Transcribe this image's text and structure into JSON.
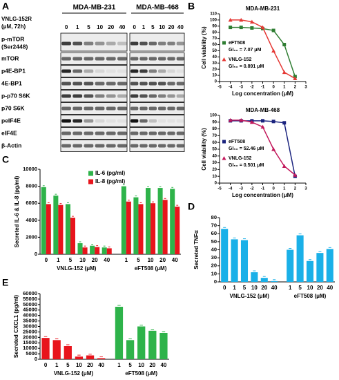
{
  "panels": [
    "A",
    "B",
    "C",
    "D",
    "E"
  ],
  "blot": {
    "cell_lines": [
      "MDA-MB-231",
      "MDA-MB-468"
    ],
    "treatment": [
      "VNLG-152R",
      "(μM, 72h)"
    ],
    "doses": [
      "0",
      "1",
      "5",
      "10",
      "20",
      "40"
    ],
    "rows": [
      [
        "p-mTOR",
        "(Ser2448)"
      ],
      [
        "mTOR"
      ],
      [
        "p4E-BP1"
      ],
      [
        "4E-BP1"
      ],
      [
        "p-p70 S6K"
      ],
      [
        "p70 S6K"
      ],
      [
        "peIF4E"
      ],
      [
        "eIF4E"
      ],
      [
        "β-Actin"
      ]
    ]
  },
  "chart_data": [
    {
      "type": "line",
      "title": "MDA-MB-231",
      "xlabel": "Log concentration (μM)",
      "ylabel": "Cell viability (%)",
      "x": [
        -4,
        -3,
        -2,
        -1,
        0,
        1,
        2
      ],
      "xlim": [
        -5,
        3
      ],
      "xticks": [
        -5,
        -4,
        -3,
        -2,
        -1,
        0,
        1,
        2,
        3
      ],
      "ylim": [
        0,
        110
      ],
      "yticks": [
        0,
        10,
        20,
        30,
        40,
        50,
        60,
        70,
        80,
        90,
        100,
        110
      ],
      "series": [
        {
          "name": "eFT508",
          "color": "#2e7d32",
          "marker": "square",
          "values": [
            88,
            88,
            87,
            86,
            83,
            60,
            8
          ],
          "annotation": "GI₅₀ = 7.07 μM"
        },
        {
          "name": "VNLG-152",
          "color": "#e53935",
          "marker": "triangle",
          "values": [
            100,
            100,
            97,
            88,
            50,
            15,
            5
          ],
          "annotation": "GI₅₀ = 0.891 μM"
        }
      ]
    },
    {
      "type": "line",
      "title": "MDA-MB-468",
      "xlabel": "Log concentration (μM)",
      "ylabel": "Cell viability (%)",
      "x": [
        -4,
        -3,
        -2,
        -1,
        0,
        1,
        2
      ],
      "xlim": [
        -5,
        3
      ],
      "xticks": [
        -5,
        -4,
        -3,
        -2,
        -1,
        0,
        1,
        2,
        3
      ],
      "ylim": [
        0,
        100
      ],
      "yticks": [
        0,
        10,
        20,
        30,
        40,
        50,
        60,
        70,
        80,
        90,
        100
      ],
      "series": [
        {
          "name": "eFT508",
          "color": "#1a237e",
          "marker": "square",
          "values": [
            92,
            92,
            92,
            92,
            91,
            89,
            10
          ],
          "annotation": "GI₅₀ = 52.46 μM"
        },
        {
          "name": "VNLG-152",
          "color": "#c2185b",
          "marker": "triangle",
          "values": [
            93,
            93,
            90,
            83,
            50,
            25,
            12
          ],
          "annotation": "GI₅₀ = 0.501 μM"
        }
      ]
    },
    {
      "type": "bar",
      "ylabel": "Secreted IL-6 & IL-8 (pg/ml)",
      "group_labels": [
        "VNLG-152 (μM)",
        "eFT508 (μM)"
      ],
      "categories": [
        "0",
        "1",
        "5",
        "10",
        "20",
        "40",
        "1",
        "5",
        "10",
        "20",
        "40"
      ],
      "ylim": [
        0,
        10000
      ],
      "yticks": [
        0,
        2000,
        4000,
        6000,
        8000,
        10000
      ],
      "series": [
        {
          "name": "IL-6 (pg/ml)",
          "color": "#2eb34a",
          "values": [
            7900,
            6900,
            5900,
            1300,
            1000,
            800,
            8000,
            6700,
            7800,
            7800,
            7700
          ]
        },
        {
          "name": "IL-8 (pg/ml)",
          "color": "#e8141c",
          "values": [
            5900,
            5800,
            4300,
            800,
            850,
            700,
            6200,
            5900,
            6000,
            6400,
            5600
          ]
        }
      ]
    },
    {
      "type": "bar",
      "ylabel": "Secreted TNFα",
      "group_labels": [
        "VNLG-152 (μM)",
        "eFT508 (μM)"
      ],
      "categories": [
        "0",
        "1",
        "5",
        "10",
        "20",
        "40",
        "1",
        "5",
        "10",
        "20",
        "40"
      ],
      "ylim": [
        0,
        80
      ],
      "yticks": [
        0,
        10,
        20,
        30,
        40,
        50,
        60,
        70,
        80
      ],
      "values": [
        66,
        53,
        52,
        12,
        5,
        1,
        40,
        58,
        26,
        36,
        41
      ],
      "color": "#1ab0e8"
    },
    {
      "type": "bar",
      "ylabel": "Secreted CXCL1 (pg/ml)",
      "group_labels": [
        "VNLG-152 (μM)",
        "eFT508 (μM)"
      ],
      "categories": [
        "0",
        "1",
        "5",
        "10",
        "20",
        "40",
        "1",
        "5",
        "10",
        "20",
        "40"
      ],
      "ylim": [
        0,
        60000
      ],
      "yticks": [
        0,
        5000,
        10000,
        15000,
        20000,
        25000,
        30000,
        35000,
        40000,
        45000,
        50000,
        55000,
        60000
      ],
      "values": [
        19500,
        17500,
        12000,
        2500,
        3500,
        1000,
        48000,
        17500,
        30000,
        26000,
        24000
      ],
      "colors": [
        "#e8141c",
        "#e8141c",
        "#e8141c",
        "#e8141c",
        "#e8141c",
        "#e8141c",
        "#2eb34a",
        "#2eb34a",
        "#2eb34a",
        "#2eb34a",
        "#2eb34a"
      ]
    }
  ]
}
